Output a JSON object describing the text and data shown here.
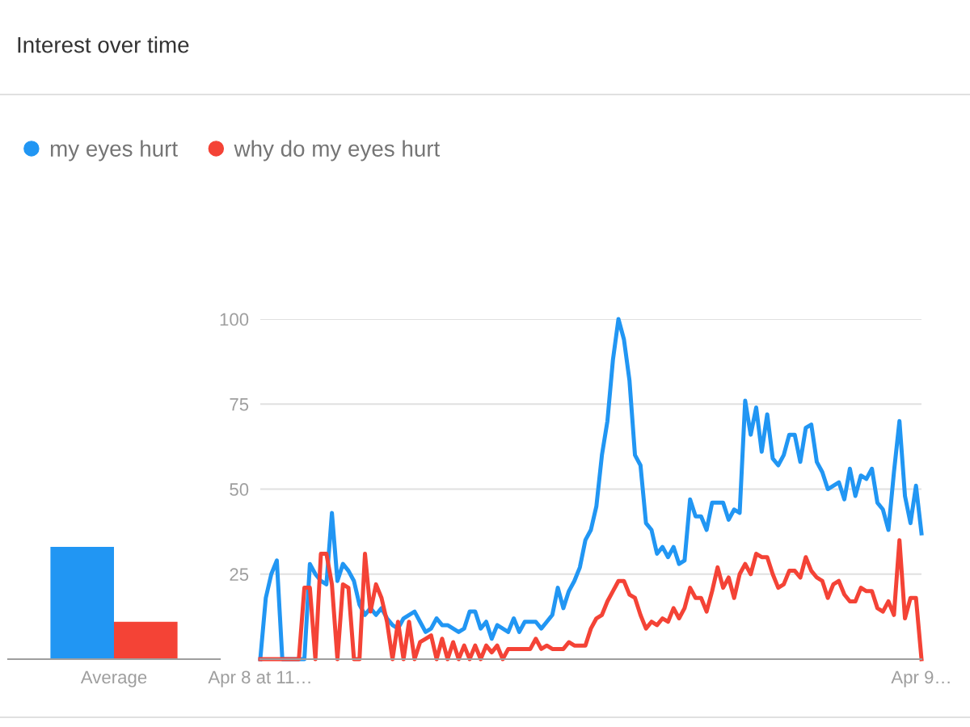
{
  "chart_data": [
    {
      "type": "bar",
      "title": "Interest over time",
      "categories": [
        "Average"
      ],
      "ylim": [
        0,
        100
      ],
      "tick_labels": "x",
      "series": [
        {
          "color": "#2196f3",
          "values": [
            33
          ]
        },
        {
          "color": "#f44336",
          "values": [
            11
          ]
        }
      ]
    },
    {
      "type": "line",
      "ylim": [
        0,
        100
      ],
      "yticks": [
        25,
        50,
        75,
        100
      ],
      "grid": "y",
      "legend": "top left",
      "categories": [
        "Apr 8 at 11…",
        null,
        null,
        null,
        null,
        null,
        null,
        null,
        null,
        null,
        null,
        null,
        null,
        null,
        null,
        null,
        null,
        null,
        null,
        null,
        null,
        null,
        null,
        null,
        null,
        null,
        null,
        null,
        null,
        null,
        null,
        null,
        null,
        null,
        null,
        null,
        null,
        null,
        null,
        null,
        null,
        null,
        null,
        null,
        null,
        null,
        null,
        null,
        null,
        null,
        null,
        null,
        null,
        null,
        null,
        null,
        null,
        null,
        null,
        null,
        null,
        null,
        null,
        null,
        null,
        null,
        null,
        null,
        null,
        null,
        null,
        null,
        null,
        null,
        null,
        null,
        null,
        null,
        null,
        null,
        null,
        null,
        null,
        null,
        null,
        null,
        null,
        null,
        null,
        null,
        null,
        null,
        null,
        null,
        null,
        null,
        null,
        null,
        null,
        null,
        null,
        null,
        null,
        null,
        null,
        null,
        null,
        null,
        null,
        null,
        null,
        null,
        null,
        null,
        null,
        null,
        null,
        null,
        null,
        null,
        "Apr 9…"
      ],
      "series": [
        {
          "name": "my eyes hurt",
          "color": "#2196f3",
          "values": [
            0,
            18,
            25,
            29,
            0,
            0,
            0,
            0,
            0,
            28,
            25,
            23,
            22,
            43,
            23,
            28,
            26,
            23,
            16,
            13,
            15,
            13,
            15,
            12,
            10,
            9,
            12,
            13,
            14,
            11,
            8,
            9,
            12,
            10,
            10,
            9,
            8,
            9,
            14,
            14,
            9,
            11,
            6,
            10,
            9,
            8,
            12,
            8,
            11,
            11,
            11,
            9,
            11,
            13,
            21,
            15,
            20,
            23,
            27,
            35,
            38,
            45,
            60,
            70,
            88,
            100,
            94,
            82,
            60,
            57,
            40,
            38,
            31,
            33,
            30,
            33,
            28,
            29,
            47,
            42,
            42,
            38,
            46,
            46,
            46,
            41,
            44,
            43,
            76,
            66,
            74,
            61,
            72,
            59,
            57,
            60,
            66,
            66,
            58,
            68,
            69,
            58,
            55,
            50,
            51,
            52,
            47,
            56,
            48,
            54,
            53,
            56,
            46,
            44,
            38,
            55,
            70,
            48,
            40,
            51,
            37
          ]
        },
        {
          "name": "why do my eyes hurt",
          "color": "#f44336",
          "values": [
            0,
            0,
            0,
            0,
            0,
            0,
            0,
            0,
            21,
            21,
            0,
            31,
            31,
            22,
            0,
            22,
            21,
            0,
            0,
            31,
            14,
            22,
            18,
            11,
            0,
            11,
            0,
            11,
            0,
            5,
            6,
            7,
            0,
            6,
            0,
            5,
            0,
            4,
            0,
            4,
            0,
            4,
            2,
            4,
            0,
            3,
            3,
            3,
            3,
            3,
            6,
            3,
            4,
            3,
            3,
            3,
            5,
            4,
            4,
            4,
            9,
            12,
            13,
            17,
            20,
            23,
            23,
            19,
            18,
            13,
            9,
            11,
            10,
            12,
            11,
            15,
            12,
            15,
            21,
            18,
            18,
            14,
            20,
            27,
            21,
            24,
            18,
            25,
            28,
            25,
            31,
            30,
            30,
            25,
            21,
            22,
            26,
            26,
            24,
            30,
            26,
            24,
            23,
            18,
            22,
            23,
            19,
            17,
            17,
            21,
            20,
            20,
            15,
            14,
            17,
            13,
            35,
            12,
            18,
            18,
            0
          ]
        }
      ]
    }
  ]
}
